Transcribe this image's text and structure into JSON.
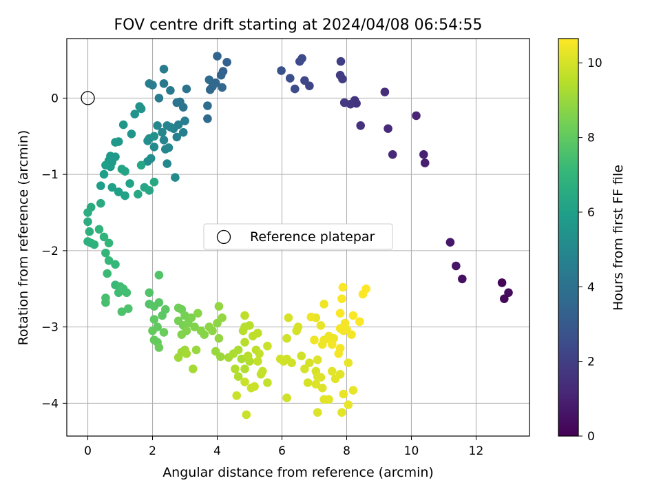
{
  "chart_data": {
    "type": "scatter",
    "title": "FOV centre drift starting at 2024/04/08 06:54:55",
    "xlabel": "Angular distance from reference (arcmin)",
    "ylabel": "Rotation from reference (arcmin)",
    "xlim": [
      -0.65,
      13.65
    ],
    "ylim": [
      -4.43,
      0.78
    ],
    "xticks": [
      0,
      2,
      4,
      6,
      8,
      10,
      12
    ],
    "yticks": [
      0,
      -1,
      -2,
      -3,
      -4
    ],
    "grid": true,
    "legend": {
      "position": "center",
      "label": "Reference platepar"
    },
    "reference_point": {
      "x": 0,
      "y": 0
    },
    "colorbar": {
      "label": "Hours from first FF file",
      "min": 0,
      "max": 10.65,
      "ticks": [
        0,
        2,
        4,
        6,
        8,
        10
      ],
      "colormap": [
        "#440154",
        "#482878",
        "#3e4989",
        "#31688e",
        "#26828e",
        "#1f9e89",
        "#35b779",
        "#6ece58",
        "#b5de2b",
        "#fde725"
      ]
    },
    "series": [
      {
        "points": [
          [
            12.8,
            -2.42,
            0.1
          ],
          [
            12.87,
            -2.63,
            0.2
          ],
          [
            13.0,
            -2.55,
            0.3
          ],
          [
            11.57,
            -2.37,
            0.5
          ],
          [
            11.38,
            -2.2,
            0.6
          ],
          [
            11.2,
            -1.89,
            0.7
          ],
          [
            10.42,
            -0.85,
            0.9
          ],
          [
            10.38,
            -0.74,
            1.0
          ],
          [
            10.15,
            -0.23,
            1.1
          ],
          [
            9.42,
            -0.74,
            1.2
          ],
          [
            9.28,
            -0.4,
            1.3
          ],
          [
            9.18,
            0.08,
            1.4
          ],
          [
            8.43,
            -0.36,
            1.5
          ],
          [
            8.3,
            -0.07,
            1.6
          ],
          [
            8.25,
            -0.03,
            1.6
          ],
          [
            8.12,
            -0.08,
            1.7
          ],
          [
            7.93,
            -0.06,
            1.8
          ],
          [
            7.87,
            0.25,
            1.9
          ],
          [
            7.8,
            0.3,
            1.9
          ],
          [
            7.82,
            0.48,
            2.0
          ],
          [
            6.85,
            0.16,
            2.2
          ],
          [
            6.7,
            0.23,
            2.3
          ],
          [
            6.62,
            0.52,
            2.4
          ],
          [
            6.55,
            0.48,
            2.4
          ],
          [
            6.4,
            0.12,
            2.5
          ],
          [
            6.25,
            0.26,
            2.6
          ],
          [
            5.98,
            0.36,
            2.7
          ],
          [
            4.3,
            0.47,
            3.3
          ],
          [
            4.18,
            0.35,
            3.3
          ],
          [
            4.12,
            0.3,
            3.4
          ],
          [
            4.0,
            0.55,
            3.4
          ],
          [
            4.15,
            0.14,
            3.5
          ],
          [
            3.95,
            0.2,
            3.5
          ],
          [
            3.85,
            0.15,
            3.6
          ],
          [
            3.78,
            0.11,
            3.6
          ],
          [
            3.75,
            0.24,
            3.7
          ],
          [
            3.7,
            -0.27,
            3.7
          ],
          [
            3.7,
            -0.1,
            3.8
          ],
          [
            3.05,
            0.12,
            4.1
          ],
          [
            2.95,
            -0.12,
            4.1
          ],
          [
            2.85,
            -0.05,
            4.2
          ],
          [
            2.75,
            -0.06,
            4.2
          ],
          [
            2.55,
            0.1,
            4.3
          ],
          [
            2.35,
            0.19,
            4.3
          ],
          [
            2.35,
            0.38,
            4.4
          ],
          [
            2.2,
            0.0,
            4.4
          ],
          [
            2.0,
            0.17,
            4.5
          ],
          [
            1.9,
            0.19,
            4.5
          ],
          [
            3.0,
            -0.3,
            4.5
          ],
          [
            2.95,
            -0.45,
            4.6
          ],
          [
            2.8,
            -0.35,
            4.6
          ],
          [
            2.75,
            -0.51,
            4.7
          ],
          [
            2.65,
            -0.4,
            4.7
          ],
          [
            2.55,
            -0.38,
            4.8
          ],
          [
            2.45,
            -0.36,
            4.8
          ],
          [
            2.35,
            -0.55,
            4.8
          ],
          [
            2.4,
            -0.67,
            4.9
          ],
          [
            2.5,
            -0.65,
            4.9
          ],
          [
            2.3,
            -0.45,
            4.9
          ],
          [
            2.15,
            -0.36,
            5.0
          ],
          [
            2.45,
            -0.86,
            5.0
          ],
          [
            2.7,
            -1.04,
            5.1
          ],
          [
            2.05,
            -0.64,
            5.1
          ],
          [
            1.95,
            -0.79,
            5.2
          ],
          [
            1.85,
            -0.83,
            5.2
          ],
          [
            1.85,
            -0.56,
            5.3
          ],
          [
            1.9,
            -0.53,
            5.3
          ],
          [
            2.05,
            -0.5,
            5.4
          ],
          [
            1.65,
            -0.14,
            5.4
          ],
          [
            1.6,
            -0.11,
            5.4
          ],
          [
            1.45,
            -0.21,
            5.5
          ],
          [
            1.35,
            -0.47,
            5.5
          ],
          [
            1.1,
            -0.35,
            5.6
          ],
          [
            0.95,
            -0.57,
            5.6
          ],
          [
            0.85,
            -0.58,
            5.7
          ],
          [
            0.85,
            -0.77,
            5.7
          ],
          [
            0.7,
            -0.76,
            5.7
          ],
          [
            0.65,
            -0.82,
            5.8
          ],
          [
            0.75,
            -0.84,
            5.8
          ],
          [
            0.7,
            -0.9,
            5.8
          ],
          [
            0.55,
            -0.88,
            5.9
          ],
          [
            0.5,
            -1.0,
            5.9
          ],
          [
            0.4,
            -1.15,
            5.9
          ],
          [
            0.75,
            -1.17,
            6.0
          ],
          [
            0.95,
            -1.23,
            6.0
          ],
          [
            1.15,
            -1.28,
            6.1
          ],
          [
            1.3,
            -1.12,
            6.1
          ],
          [
            1.05,
            -0.93,
            6.2
          ],
          [
            1.15,
            -0.96,
            6.2
          ],
          [
            1.65,
            -0.88,
            6.3
          ],
          [
            1.75,
            -1.17,
            6.3
          ],
          [
            1.9,
            -1.21,
            6.3
          ],
          [
            2.05,
            -1.1,
            6.4
          ],
          [
            1.55,
            -1.26,
            6.4
          ],
          [
            0.4,
            -1.38,
            6.5
          ],
          [
            0.1,
            -1.43,
            6.5
          ],
          [
            0.0,
            -1.5,
            6.6
          ],
          [
            0.0,
            -1.62,
            6.6
          ],
          [
            0.05,
            -1.75,
            6.7
          ],
          [
            0.0,
            -1.88,
            6.7
          ],
          [
            0.1,
            -1.9,
            6.8
          ],
          [
            0.2,
            -1.92,
            6.8
          ],
          [
            0.35,
            -1.72,
            6.9
          ],
          [
            0.5,
            -1.82,
            6.9
          ],
          [
            0.65,
            -1.9,
            7.0
          ],
          [
            0.55,
            -2.03,
            7.0
          ],
          [
            0.65,
            -2.13,
            7.1
          ],
          [
            0.85,
            -2.18,
            7.1
          ],
          [
            0.6,
            -2.3,
            7.2
          ],
          [
            0.85,
            -2.45,
            7.2
          ],
          [
            1.0,
            -2.47,
            7.3
          ],
          [
            0.95,
            -2.55,
            7.3
          ],
          [
            1.1,
            -2.5,
            7.4
          ],
          [
            1.2,
            -2.55,
            7.4
          ],
          [
            0.55,
            -2.62,
            7.5
          ],
          [
            0.55,
            -2.68,
            7.5
          ],
          [
            1.05,
            -2.8,
            7.6
          ],
          [
            1.25,
            -2.76,
            7.6
          ],
          [
            1.9,
            -2.7,
            7.7
          ],
          [
            1.9,
            -2.55,
            7.7
          ],
          [
            2.2,
            -2.32,
            7.7
          ],
          [
            2.05,
            -2.73,
            7.8
          ],
          [
            2.2,
            -2.68,
            7.8
          ],
          [
            2.3,
            -2.85,
            7.9
          ],
          [
            2.4,
            -2.77,
            7.9
          ],
          [
            2.05,
            -2.9,
            8.0
          ],
          [
            2.15,
            -3.0,
            8.0
          ],
          [
            2.0,
            -3.05,
            8.1
          ],
          [
            2.05,
            -3.17,
            8.1
          ],
          [
            2.15,
            -3.2,
            8.1
          ],
          [
            2.2,
            -3.27,
            8.2
          ],
          [
            2.35,
            -3.07,
            8.2
          ],
          [
            2.8,
            -2.75,
            8.3
          ],
          [
            2.9,
            -2.77,
            8.3
          ],
          [
            3.0,
            -2.85,
            8.4
          ],
          [
            2.8,
            -2.92,
            8.4
          ],
          [
            2.95,
            -2.98,
            8.4
          ],
          [
            3.1,
            -2.95,
            8.5
          ],
          [
            3.2,
            -2.88,
            8.5
          ],
          [
            3.05,
            -3.05,
            8.6
          ],
          [
            2.9,
            -3.1,
            8.6
          ],
          [
            3.3,
            -3.0,
            8.6
          ],
          [
            3.4,
            -2.82,
            8.7
          ],
          [
            3.5,
            -3.05,
            8.7
          ],
          [
            3.6,
            -3.1,
            8.7
          ],
          [
            3.75,
            -3.0,
            8.8
          ],
          [
            3.85,
            -3.05,
            8.8
          ],
          [
            4.0,
            -2.95,
            8.8
          ],
          [
            4.05,
            -2.73,
            8.9
          ],
          [
            4.15,
            -2.88,
            8.9
          ],
          [
            4.05,
            -3.15,
            8.9
          ],
          [
            3.95,
            -3.32,
            9.0
          ],
          [
            4.1,
            -3.39,
            9.0
          ],
          [
            3.35,
            -3.3,
            9.0
          ],
          [
            3.0,
            -3.3,
            9.1
          ],
          [
            2.8,
            -3.4,
            9.1
          ],
          [
            2.9,
            -3.33,
            9.1
          ],
          [
            3.05,
            -3.35,
            9.2
          ],
          [
            3.25,
            -3.55,
            9.2
          ],
          [
            4.35,
            -3.4,
            9.2
          ],
          [
            4.5,
            -3.35,
            9.3
          ],
          [
            4.65,
            -3.3,
            9.3
          ],
          [
            4.75,
            -3.42,
            9.3
          ],
          [
            4.55,
            -3.55,
            9.4
          ],
          [
            4.65,
            -3.65,
            9.4
          ],
          [
            4.85,
            -3.55,
            9.4
          ],
          [
            5.0,
            -3.45,
            9.4
          ],
          [
            4.95,
            -3.38,
            9.5
          ],
          [
            4.85,
            -3.2,
            9.5
          ],
          [
            4.8,
            -3.05,
            9.5
          ],
          [
            4.85,
            -3.0,
            9.5
          ],
          [
            5.0,
            -2.98,
            9.5
          ],
          [
            4.85,
            -2.85,
            9.6
          ],
          [
            5.1,
            -3.12,
            9.6
          ],
          [
            5.25,
            -3.08,
            9.6
          ],
          [
            5.2,
            -3.3,
            9.6
          ],
          [
            5.3,
            -3.35,
            9.7
          ],
          [
            5.25,
            -3.45,
            9.7
          ],
          [
            5.4,
            -3.58,
            9.7
          ],
          [
            5.35,
            -3.62,
            9.7
          ],
          [
            5.55,
            -3.73,
            9.7
          ],
          [
            5.15,
            -3.78,
            9.8
          ],
          [
            5.05,
            -3.8,
            9.8
          ],
          [
            4.9,
            -4.15,
            9.8
          ],
          [
            4.6,
            -3.9,
            9.8
          ],
          [
            4.85,
            -3.72,
            9.8
          ],
          [
            5.55,
            -3.25,
            9.8
          ],
          [
            5.95,
            -3.42,
            9.9
          ],
          [
            6.05,
            -3.45,
            9.9
          ],
          [
            6.15,
            -3.42,
            9.9
          ],
          [
            6.3,
            -3.47,
            9.9
          ],
          [
            6.15,
            -3.93,
            9.9
          ],
          [
            6.6,
            -3.38,
            9.9
          ],
          [
            6.15,
            -3.15,
            9.9
          ],
          [
            6.2,
            -2.88,
            10.0
          ],
          [
            6.45,
            -3.05,
            10.0
          ],
          [
            6.5,
            -3.0,
            10.0
          ],
          [
            6.7,
            -3.55,
            10.0
          ],
          [
            6.85,
            -3.47,
            10.0
          ],
          [
            6.8,
            -3.73,
            10.0
          ],
          [
            7.05,
            -3.58,
            10.0
          ],
          [
            7.1,
            -3.43,
            10.1
          ],
          [
            7.1,
            -3.65,
            10.1
          ],
          [
            7.2,
            -3.66,
            10.1
          ],
          [
            7.25,
            -3.8,
            10.1
          ],
          [
            7.05,
            -3.75,
            10.1
          ],
          [
            7.1,
            -4.12,
            10.1
          ],
          [
            7.3,
            -3.95,
            10.2
          ],
          [
            7.45,
            -3.95,
            10.2
          ],
          [
            7.55,
            -3.58,
            10.2
          ],
          [
            7.65,
            -3.68,
            10.2
          ],
          [
            7.8,
            -3.62,
            10.2
          ],
          [
            7.85,
            -4.12,
            10.2
          ],
          [
            7.9,
            -3.88,
            10.3
          ],
          [
            8.05,
            -4.02,
            10.3
          ],
          [
            8.05,
            -3.47,
            10.3
          ],
          [
            8.2,
            -3.83,
            10.3
          ],
          [
            7.05,
            -2.88,
            10.3
          ],
          [
            7.2,
            -2.98,
            10.3
          ],
          [
            7.3,
            -2.7,
            10.4
          ],
          [
            6.9,
            -2.87,
            10.4
          ],
          [
            7.0,
            -3.17,
            10.4
          ],
          [
            7.25,
            -3.23,
            10.4
          ],
          [
            7.3,
            -3.17,
            10.4
          ],
          [
            7.45,
            -3.12,
            10.4
          ],
          [
            7.5,
            -3.17,
            10.4
          ],
          [
            7.6,
            -3.15,
            10.4
          ],
          [
            7.55,
            -3.23,
            10.5
          ],
          [
            7.8,
            -3.28,
            10.5
          ],
          [
            7.75,
            -3.35,
            10.5
          ],
          [
            7.8,
            -3.02,
            10.5
          ],
          [
            7.9,
            -3.05,
            10.5
          ],
          [
            8.0,
            -3.03,
            10.5
          ],
          [
            7.95,
            -2.95,
            10.5
          ],
          [
            8.15,
            -3.1,
            10.5
          ],
          [
            7.8,
            -2.82,
            10.6
          ],
          [
            7.85,
            -2.63,
            10.6
          ],
          [
            7.88,
            -2.48,
            10.6
          ],
          [
            8.2,
            -2.85,
            10.6
          ],
          [
            8.4,
            -2.93,
            10.6
          ],
          [
            8.5,
            -2.57,
            10.6
          ],
          [
            8.6,
            -2.5,
            10.65
          ]
        ]
      }
    ]
  }
}
